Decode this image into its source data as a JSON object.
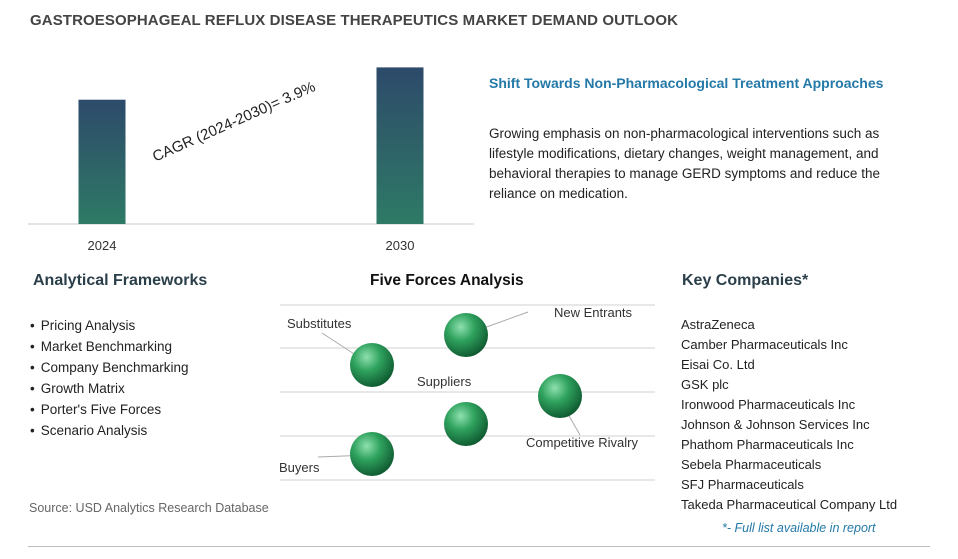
{
  "title": "GASTROESOPHAGEAL REFLUX DISEASE THERAPEUTICS MARKET DEMAND OUTLOOK",
  "chart_data": {
    "type": "bar",
    "categories": [
      "2024",
      "2030"
    ],
    "values": [
      1.0,
      1.26
    ],
    "ylim": [
      0,
      1.4
    ],
    "annotation": "CAGR (2024-2030)=  3.9%",
    "grid": false,
    "colors": {
      "bar_top": "#2d4a6a",
      "bar_bottom": "#2e7a66",
      "axis": "#c8c8c8"
    }
  },
  "trend": {
    "title": "Shift Towards Non-Pharmacological Treatment Approaches",
    "text": "Growing emphasis on non-pharmacological interventions such as lifestyle modifications, dietary changes, weight management, and behavioral therapies to manage GERD symptoms and reduce the reliance on medication."
  },
  "frameworks": {
    "title": "Analytical Frameworks",
    "items": [
      "Pricing Analysis",
      "Market Benchmarking",
      "Company Benchmarking",
      "Growth Matrix",
      "Porter's Five Forces",
      "Scenario Analysis"
    ]
  },
  "five_forces": {
    "title": "Five Forces Analysis",
    "labels": {
      "substitutes": "Substitutes",
      "new_entrants": "New Entrants",
      "suppliers": "Suppliers",
      "competitive_rivalry": "Competitive Rivalry",
      "buyers": "Buyers"
    },
    "colors": {
      "sphere_light": "#8ee0ae",
      "sphere_mid": "#2fa25e",
      "sphere_dark": "#0f5a30",
      "line": "#d0d0d0"
    }
  },
  "companies": {
    "title": "Key Companies*",
    "items": [
      "AstraZeneca",
      "Camber Pharmaceuticals Inc",
      "Eisai Co. Ltd",
      "GSK plc",
      "Ironwood Pharmaceuticals Inc",
      "Johnson & Johnson Services Inc",
      "Phathom Pharmaceuticals Inc",
      "Sebela Pharmaceuticals",
      "SFJ Pharmaceuticals",
      "Takeda Pharmaceutical Company Ltd"
    ],
    "note": "*- Full list available in report"
  },
  "source": "Source: USD Analytics Research Database"
}
